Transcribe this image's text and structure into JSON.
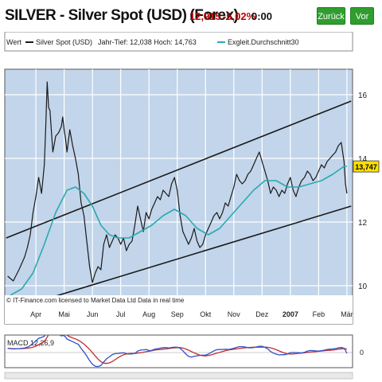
{
  "header": {
    "title": "SILVER - Silver Spot (USD)",
    "title_suffix": "(Forex)",
    "price": "12,915",
    "change": "-5,02%",
    "time": "0:00",
    "back_button": "Zurück",
    "forward_button": "Vor"
  },
  "legend": {
    "label": "Wert",
    "series_main": "Silver Spot (USD)",
    "range_text": "Jahr-Tief: 12,038 Hoch: 14,763",
    "series_avg": "Exgleit.Durchschnitt30"
  },
  "footer_note": "© IT-Finance.com  licensed to Market Data Ltd   Data in real time",
  "macd": {
    "label": "MACD 12,26,9",
    "zero_tick": "0"
  },
  "colors": {
    "plot_bg": "#c2d5ea",
    "grid": "#ffffff",
    "price_line": "#1a1a1a",
    "average_line": "#29aab0",
    "channel_lines": "#1a1a1a",
    "last_value_bg": "#ffe000",
    "macd_line": "#3050c8",
    "signal_line": "#c03030",
    "buttons": "#2f9e2f",
    "header_price": "#c00000"
  },
  "chart_data": {
    "type": "line",
    "y_ticks": [
      "16",
      "14",
      "12",
      "10"
    ],
    "y_tick_values": [
      16,
      14,
      12,
      10
    ],
    "ylim": [
      8.8,
      16.8
    ],
    "x_tick_labels": [
      "Apr",
      "Mai",
      "Jun",
      "Jul",
      "Aug",
      "Sep",
      "Okt",
      "Nov",
      "Dez",
      "2007",
      "Feb",
      "Mär"
    ],
    "x_tick_positions": [
      1.1,
      2.1,
      3.1,
      4.1,
      5.1,
      6.1,
      7.1,
      8.1,
      9.1,
      10.1,
      11.1,
      12.1
    ],
    "xlim": [
      0,
      12.3
    ],
    "last_value": "13,747",
    "series": [
      {
        "name": "Silver Spot (USD)",
        "x": [
          0.1,
          0.3,
          0.5,
          0.7,
          0.8,
          0.9,
          1.0,
          1.1,
          1.2,
          1.3,
          1.4,
          1.45,
          1.5,
          1.55,
          1.6,
          1.7,
          1.8,
          1.9,
          2.0,
          2.05,
          2.1,
          2.15,
          2.2,
          2.3,
          2.4,
          2.5,
          2.6,
          2.7,
          2.8,
          2.9,
          3.0,
          3.1,
          3.2,
          3.3,
          3.4,
          3.5,
          3.6,
          3.7,
          3.8,
          3.9,
          4.0,
          4.1,
          4.2,
          4.3,
          4.4,
          4.5,
          4.6,
          4.7,
          4.8,
          4.9,
          5.0,
          5.1,
          5.2,
          5.3,
          5.4,
          5.5,
          5.6,
          5.7,
          5.8,
          5.9,
          6.0,
          6.1,
          6.2,
          6.3,
          6.4,
          6.5,
          6.6,
          6.7,
          6.8,
          6.9,
          7.0,
          7.1,
          7.2,
          7.3,
          7.4,
          7.5,
          7.6,
          7.7,
          7.8,
          7.9,
          8.0,
          8.1,
          8.2,
          8.3,
          8.4,
          8.5,
          8.6,
          8.7,
          8.8,
          8.9,
          9.0,
          9.1,
          9.2,
          9.3,
          9.4,
          9.5,
          9.6,
          9.7,
          9.8,
          9.9,
          10.0,
          10.1,
          10.2,
          10.3,
          10.4,
          10.5,
          10.6,
          10.7,
          10.8,
          10.9,
          11.0,
          11.1,
          11.2,
          11.3,
          11.4,
          11.5,
          11.6,
          11.7,
          11.8,
          11.9,
          12.0,
          12.05,
          12.1
        ],
        "values": [
          10.3,
          10.15,
          10.5,
          10.9,
          11.2,
          11.6,
          12.3,
          12.8,
          13.4,
          12.9,
          13.8,
          15.0,
          16.4,
          15.6,
          15.5,
          14.2,
          14.7,
          14.8,
          15.0,
          15.3,
          14.9,
          14.6,
          14.2,
          14.9,
          14.4,
          14.0,
          13.5,
          12.6,
          12.2,
          11.4,
          10.6,
          10.1,
          10.4,
          10.6,
          10.5,
          11.3,
          11.6,
          11.2,
          11.4,
          11.6,
          11.5,
          11.3,
          11.5,
          11.1,
          11.3,
          11.4,
          11.9,
          12.5,
          12.1,
          11.7,
          12.3,
          12.1,
          12.4,
          12.6,
          12.8,
          12.7,
          13.0,
          12.9,
          12.8,
          13.2,
          13.4,
          13.0,
          12.2,
          11.7,
          11.5,
          11.3,
          11.5,
          11.8,
          11.4,
          11.2,
          11.3,
          11.6,
          11.8,
          12.0,
          12.2,
          12.3,
          12.1,
          12.3,
          12.6,
          12.5,
          12.8,
          13.1,
          13.5,
          13.3,
          13.2,
          13.3,
          13.5,
          13.6,
          13.8,
          14.0,
          14.2,
          13.9,
          13.6,
          13.3,
          12.9,
          13.1,
          13.0,
          12.8,
          13.0,
          12.9,
          13.2,
          13.4,
          13.0,
          12.8,
          13.1,
          13.3,
          13.4,
          13.6,
          13.5,
          13.3,
          13.4,
          13.6,
          13.8,
          13.7,
          13.9,
          14.0,
          14.1,
          14.2,
          14.4,
          14.5,
          13.9,
          13.2,
          12.9
        ]
      },
      {
        "name": "Exgleit.Durchschnitt30",
        "x": [
          0.2,
          0.6,
          1.0,
          1.4,
          1.8,
          2.2,
          2.5,
          2.8,
          3.1,
          3.4,
          3.7,
          4.0,
          4.4,
          4.8,
          5.2,
          5.6,
          6.0,
          6.4,
          6.8,
          7.2,
          7.6,
          8.0,
          8.4,
          8.8,
          9.2,
          9.6,
          10.0,
          10.4,
          10.8,
          11.2,
          11.6,
          12.0,
          12.1
        ],
        "values": [
          9.7,
          9.9,
          10.4,
          11.3,
          12.3,
          13.0,
          13.1,
          12.9,
          12.5,
          11.9,
          11.6,
          11.5,
          11.5,
          11.7,
          11.9,
          12.2,
          12.4,
          12.2,
          11.8,
          11.6,
          11.8,
          12.2,
          12.6,
          13.0,
          13.3,
          13.3,
          13.1,
          13.1,
          13.2,
          13.3,
          13.5,
          13.75,
          13.75
        ]
      }
    ],
    "channel_lines": [
      {
        "from": [
          0.05,
          11.5
        ],
        "to": [
          12.25,
          15.8
        ]
      },
      {
        "from": [
          0.05,
          9.2
        ],
        "to": [
          12.25,
          12.5
        ]
      }
    ]
  }
}
